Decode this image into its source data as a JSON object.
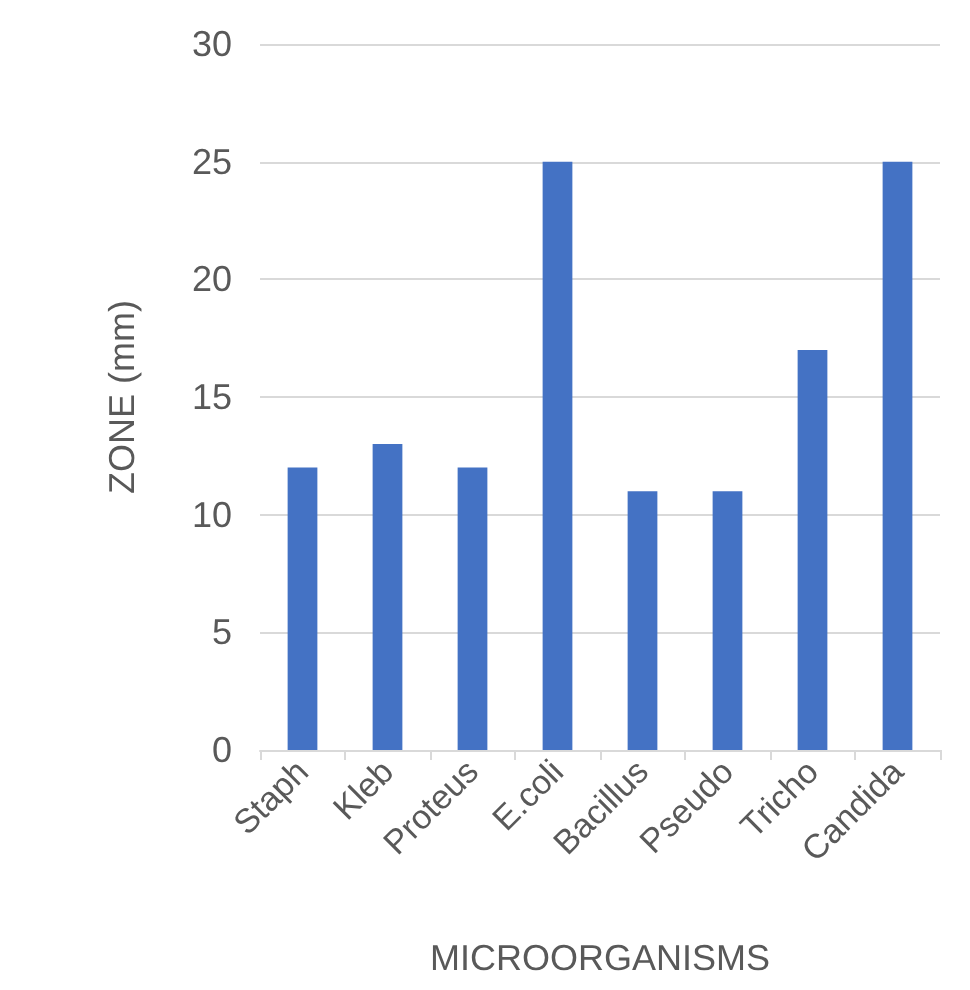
{
  "chart_data": {
    "type": "bar",
    "xlabel": "MICROORGANISMS",
    "ylabel": "ZONE (mm)",
    "categories": [
      "Staph",
      "Kleb",
      "Proteus",
      "E.coli",
      "Bacillus",
      "Pseudo",
      "Tricho",
      "Candida"
    ],
    "values": [
      12,
      13,
      12,
      25,
      11,
      11,
      17,
      25
    ],
    "color": "#4472c4",
    "ylim": [
      0,
      30
    ],
    "yticks": [
      0,
      5,
      10,
      15,
      20,
      25,
      30
    ],
    "grid": "y"
  }
}
